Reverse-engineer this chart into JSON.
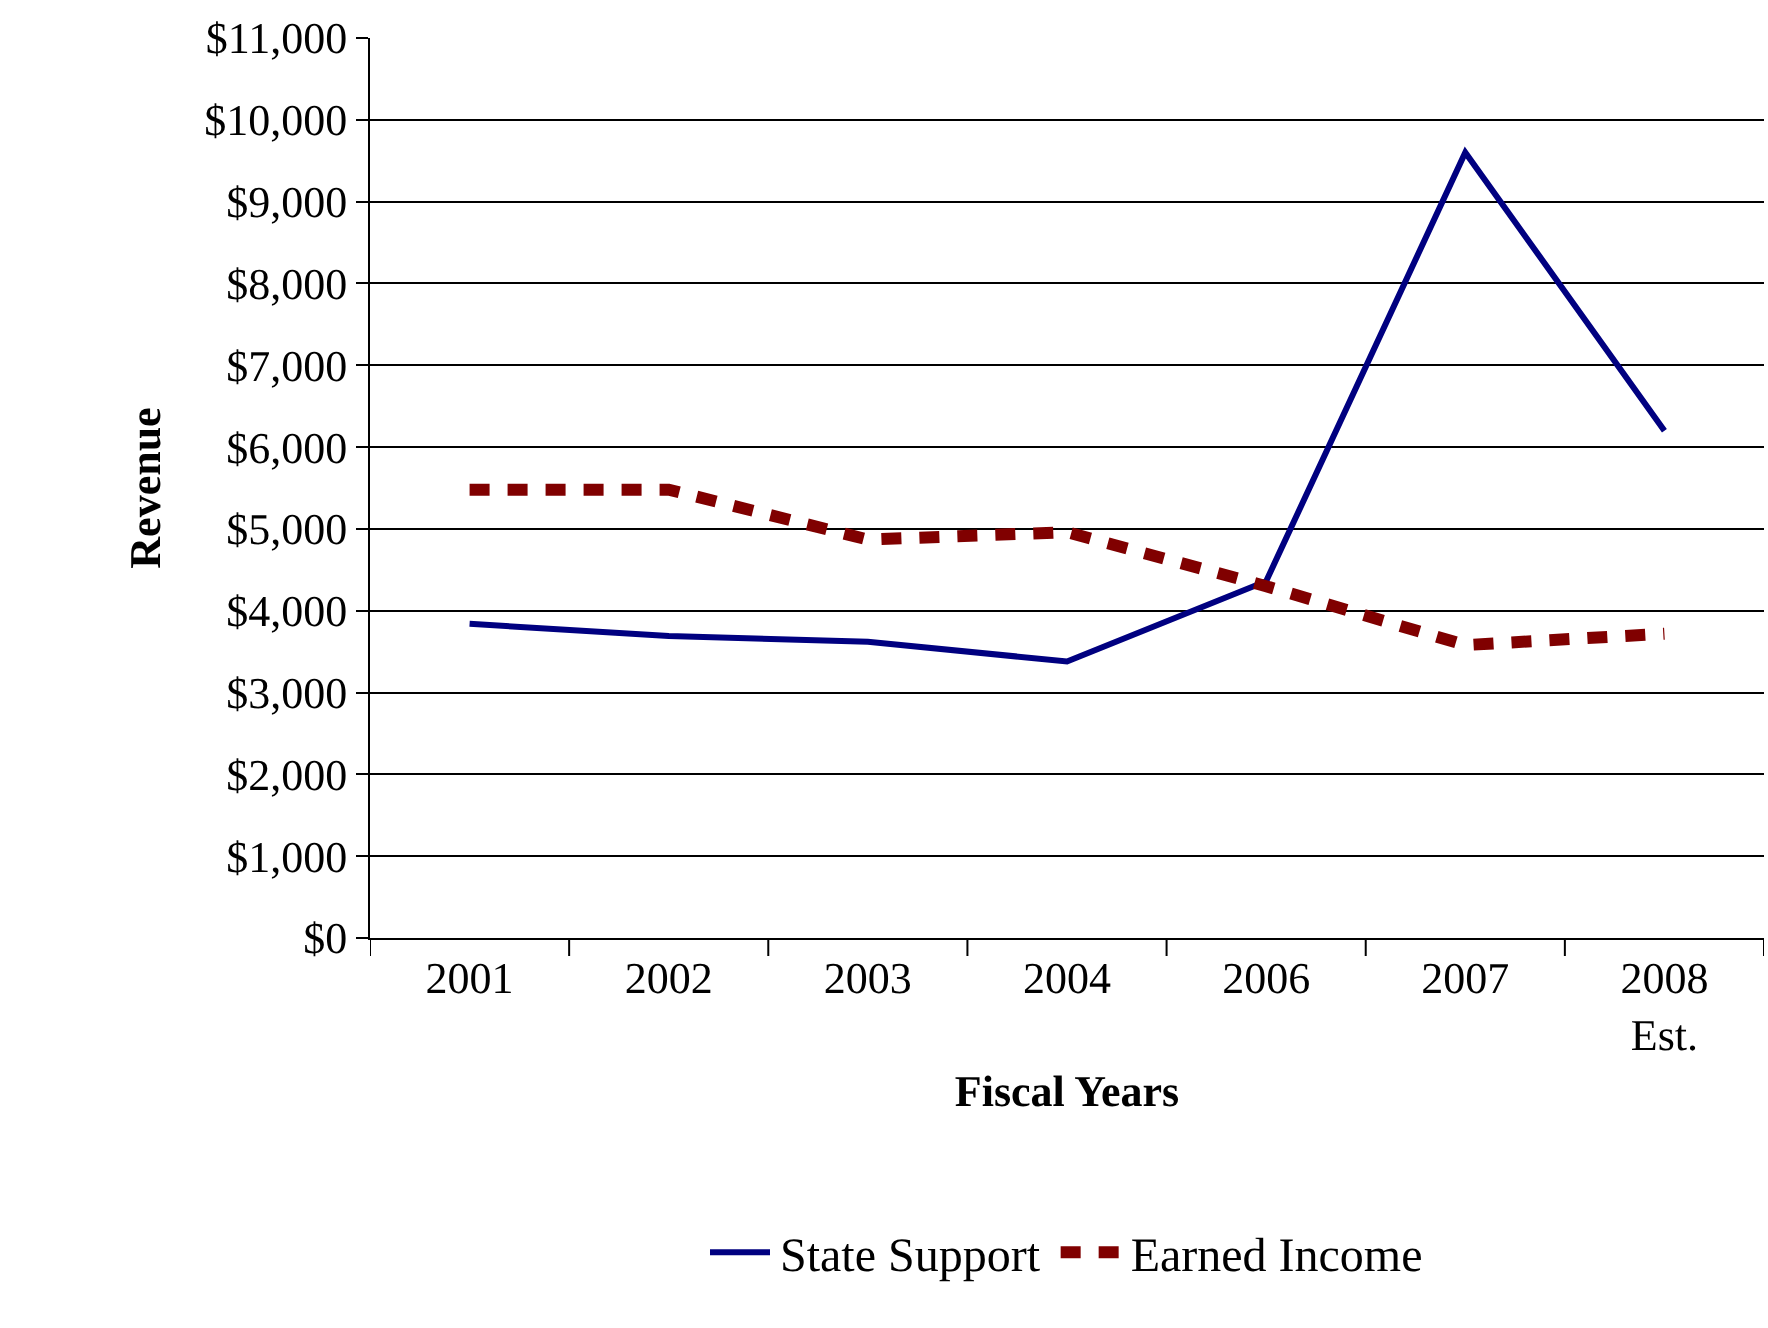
{
  "chart_data": {
    "type": "line",
    "xlabel": "Fiscal Years",
    "ylabel": "Revenue",
    "categories": [
      "2001",
      "2002",
      "2003",
      "2004",
      "2006",
      "2007",
      "2008\nEst."
    ],
    "series": [
      {
        "name": "State Support",
        "color": "#000080",
        "line_style": "solid",
        "values": [
          3840,
          3690,
          3620,
          3380,
          4360,
          9600,
          6200
        ]
      },
      {
        "name": "Earned Income",
        "color": "#800000",
        "line_style": "dashed",
        "values": [
          5480,
          5480,
          4870,
          4960,
          4300,
          3580,
          3720
        ]
      }
    ],
    "ylim": [
      0,
      11000
    ],
    "yticks": [
      {
        "value": 0,
        "label": "$0"
      },
      {
        "value": 1000,
        "label": "$1,000"
      },
      {
        "value": 2000,
        "label": "$2,000"
      },
      {
        "value": 3000,
        "label": "$3,000"
      },
      {
        "value": 4000,
        "label": "$4,000"
      },
      {
        "value": 5000,
        "label": "$5,000"
      },
      {
        "value": 6000,
        "label": "$6,000"
      },
      {
        "value": 7000,
        "label": "$7,000"
      },
      {
        "value": 8000,
        "label": "$8,000"
      },
      {
        "value": 9000,
        "label": "$9,000"
      },
      {
        "value": 10000,
        "label": "$10,000"
      },
      {
        "value": 11000,
        "label": "$11,000"
      }
    ],
    "grid": "y",
    "legend": "bottom",
    "marker": "none"
  }
}
